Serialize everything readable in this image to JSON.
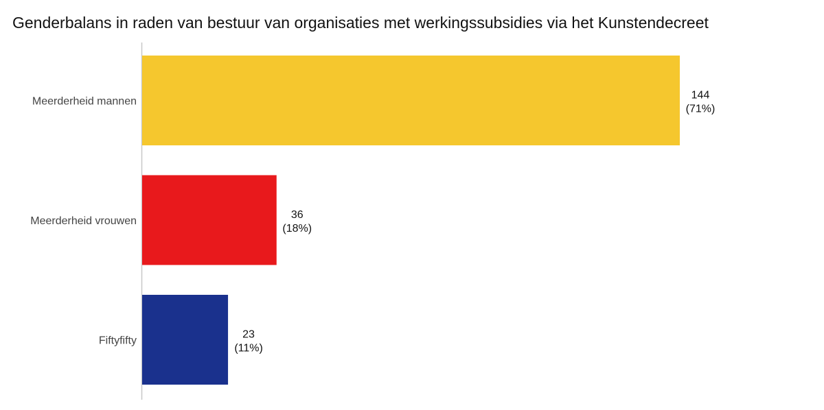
{
  "chart_data": {
    "type": "bar",
    "orientation": "horizontal",
    "title": "Genderbalans in raden van bestuur van organisaties met werkingssubsidies via het Kunstendecreet",
    "categories": [
      "Meerderheid mannen",
      "Meerderheid vrouwen",
      "Fiftyfifty"
    ],
    "values": [
      144,
      36,
      23
    ],
    "percent_labels": [
      "(71%)",
      "(18%)",
      "(11%)"
    ],
    "value_labels": [
      "144",
      "36",
      "23"
    ],
    "colors": [
      "#F5C72E",
      "#E8191C",
      "#1A318D"
    ],
    "xlim": [
      0,
      144
    ],
    "grid": false,
    "legend": "none"
  }
}
